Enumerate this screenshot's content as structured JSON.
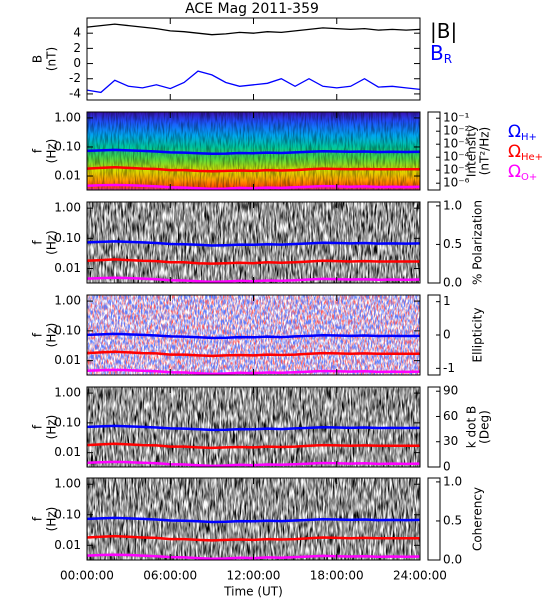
{
  "chart_data": [
    {
      "type": "line",
      "title": "ACE Mag 2011-359",
      "ylabel": [
        "B",
        "(nT)"
      ],
      "x": [
        0,
        1,
        2,
        3,
        4,
        5,
        6,
        7,
        8,
        9,
        10,
        11,
        12,
        13,
        14,
        15,
        16,
        17,
        18,
        19,
        20,
        21,
        22,
        23,
        24
      ],
      "ylim": [
        -4.8,
        6
      ],
      "yticks": [
        -4,
        -2,
        0,
        2,
        4
      ],
      "series": [
        {
          "name": "|B|",
          "color": "#000000",
          "values": [
            4.8,
            5.0,
            5.2,
            5.0,
            4.8,
            4.6,
            4.3,
            4.2,
            4.0,
            3.8,
            3.9,
            4.1,
            4.0,
            4.2,
            4.1,
            4.3,
            4.5,
            4.7,
            4.6,
            4.5,
            4.6,
            4.4,
            4.5,
            4.4,
            4.5
          ]
        },
        {
          "name": "B",
          "subscript": "R",
          "color": "#0000ff",
          "values": [
            -3.5,
            -3.8,
            -2.2,
            -3.0,
            -3.2,
            -2.8,
            -3.3,
            -2.5,
            -1.0,
            -1.5,
            -2.5,
            -3.0,
            -2.8,
            -2.6,
            -2.0,
            -3.0,
            -2.0,
            -3.0,
            -3.2,
            -3.0,
            -2.0,
            -3.1,
            -3.0,
            -3.2,
            -3.4
          ]
        }
      ]
    },
    {
      "type": "spectrogram",
      "ylabel": [
        "f",
        "(Hz)"
      ],
      "log_y": true,
      "ylim": [
        0.0033,
        1.6
      ],
      "yticks": [
        {
          "value": 0.01,
          "label": "0.01"
        },
        {
          "value": 0.1,
          "label": "0.10"
        },
        {
          "value": 1,
          "label": "1.00"
        }
      ],
      "colorbar": {
        "label": [
          "Intensity",
          "(nT²/Hz)"
        ],
        "colormap": "rainbow",
        "log": true,
        "clim": [
          3e-07,
          0.3
        ],
        "ticks": [
          {
            "value": 1e-06,
            "label": "10⁻⁶"
          },
          {
            "value": 1e-05,
            "label": "10⁻⁵"
          },
          {
            "value": 0.0001,
            "label": "10⁻⁴"
          },
          {
            "value": 0.001,
            "label": "10⁻³"
          },
          {
            "value": 0.01,
            "label": "10⁻²"
          },
          {
            "value": 0.1,
            "label": "10⁻¹"
          }
        ]
      },
      "x": [
        0,
        1,
        2,
        3,
        4,
        5,
        6,
        7,
        8,
        9,
        10,
        11,
        12,
        13,
        14,
        15,
        16,
        17,
        18,
        19,
        20,
        21,
        22,
        23,
        24
      ],
      "series": [
        {
          "name": "Ω",
          "subscript": "H+",
          "color": "#0000ff",
          "values": [
            0.073,
            0.076,
            0.079,
            0.076,
            0.073,
            0.07,
            0.065,
            0.064,
            0.061,
            0.058,
            0.059,
            0.062,
            0.061,
            0.064,
            0.062,
            0.065,
            0.068,
            0.071,
            0.07,
            0.068,
            0.07,
            0.067,
            0.068,
            0.067,
            0.068
          ]
        },
        {
          "name": "Ω",
          "subscript": "He+",
          "color": "#ff0000",
          "values": [
            0.018,
            0.019,
            0.02,
            0.019,
            0.018,
            0.0175,
            0.016,
            0.016,
            0.015,
            0.0145,
            0.015,
            0.0155,
            0.015,
            0.016,
            0.0155,
            0.016,
            0.017,
            0.018,
            0.0175,
            0.017,
            0.0175,
            0.017,
            0.017,
            0.017,
            0.017
          ]
        },
        {
          "name": "Ω",
          "subscript": "O+",
          "color": "#ff00ff",
          "values": [
            0.0046,
            0.0048,
            0.0049,
            0.0048,
            0.0046,
            0.0044,
            0.0041,
            0.004,
            0.0038,
            0.0036,
            0.0037,
            0.0039,
            0.0038,
            0.004,
            0.0039,
            0.0041,
            0.0043,
            0.0045,
            0.0044,
            0.0043,
            0.0044,
            0.0042,
            0.0043,
            0.0042,
            0.0043
          ]
        }
      ]
    },
    {
      "type": "spectrogram",
      "ylabel": [
        "f",
        "(Hz)"
      ],
      "log_y": true,
      "ylim": [
        0.0033,
        1.6
      ],
      "yticks": [
        {
          "value": 0.01,
          "label": "0.01"
        },
        {
          "value": 0.1,
          "label": "0.10"
        },
        {
          "value": 1,
          "label": "1.00"
        }
      ],
      "colorbar": {
        "label": [
          "% Polarization"
        ],
        "colormap": "gray",
        "clim": [
          0,
          1.05
        ],
        "ticks": [
          {
            "value": 0,
            "label": "0.0"
          },
          {
            "value": 0.5,
            "label": "0.5"
          },
          {
            "value": 1,
            "label": "1.0"
          }
        ]
      }
    },
    {
      "type": "spectrogram",
      "ylabel": [
        "f",
        "(Hz)"
      ],
      "log_y": true,
      "ylim": [
        0.0033,
        1.6
      ],
      "yticks": [
        {
          "value": 0.01,
          "label": "0.01"
        },
        {
          "value": 0.1,
          "label": "0.10"
        },
        {
          "value": 1,
          "label": "1.00"
        }
      ],
      "colorbar": {
        "label": [
          "Ellipticity"
        ],
        "colormap": "bwr",
        "clim": [
          -1.2,
          1.2
        ],
        "ticks": [
          -1,
          0,
          1
        ]
      }
    },
    {
      "type": "spectrogram",
      "ylabel": [
        "f",
        "(Hz)"
      ],
      "log_y": true,
      "ylim": [
        0.0033,
        1.6
      ],
      "yticks": [
        {
          "value": 0.01,
          "label": "0.01"
        },
        {
          "value": 0.1,
          "label": "0.10"
        },
        {
          "value": 1,
          "label": "1.00"
        }
      ],
      "colorbar": {
        "label": [
          "k dot B",
          "(Deg)"
        ],
        "colormap": "gray",
        "clim": [
          0,
          95
        ],
        "ticks": [
          0,
          30,
          60,
          90
        ]
      }
    },
    {
      "type": "spectrogram",
      "ylabel": [
        "f",
        "(Hz)"
      ],
      "log_y": true,
      "ylim": [
        0.0033,
        1.6
      ],
      "yticks": [
        {
          "value": 0.01,
          "label": "0.01"
        },
        {
          "value": 0.1,
          "label": "0.10"
        },
        {
          "value": 1,
          "label": "1.00"
        }
      ],
      "colorbar": {
        "label": [
          "Coherency"
        ],
        "colormap": "gray",
        "clim": [
          0,
          1.05
        ],
        "ticks": [
          {
            "value": 0,
            "label": "0.0"
          },
          {
            "value": 0.5,
            "label": "0.5"
          },
          {
            "value": 1,
            "label": "1.0"
          }
        ]
      },
      "xlim": [
        0,
        24
      ],
      "xlabel": "Time (UT)",
      "xticks": [
        {
          "value": 0,
          "label": "00:00:00"
        },
        {
          "value": 6,
          "label": "06:00:00"
        },
        {
          "value": 12,
          "label": "12:00:00"
        },
        {
          "value": 18,
          "label": "18:00:00"
        },
        {
          "value": 24,
          "label": "24:00:00"
        }
      ]
    }
  ]
}
